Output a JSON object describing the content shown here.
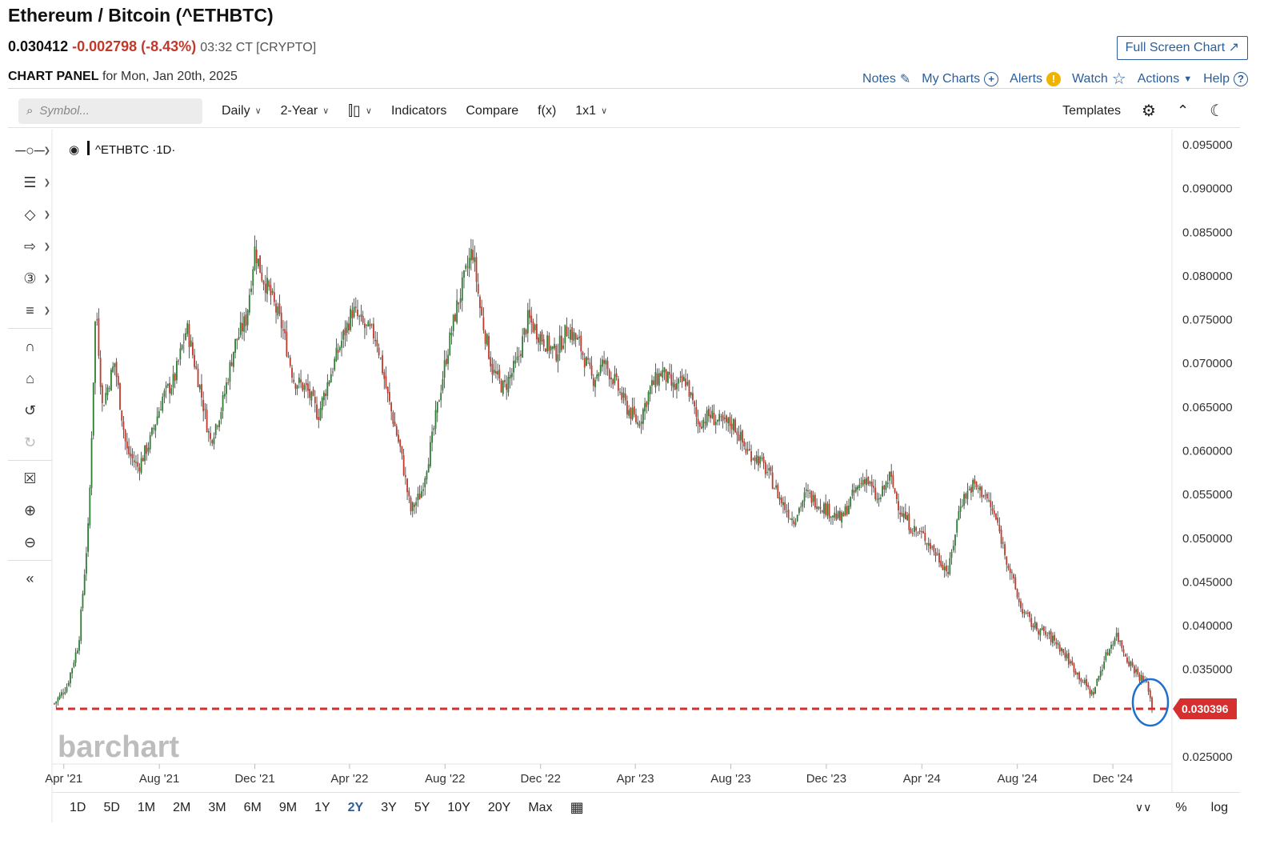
{
  "header": {
    "title": "Ethereum / Bitcoin (^ETHBTC)",
    "last": "0.030412",
    "change": "-0.002798 (-8.43%)",
    "time": "03:32 CT [CRYPTO]",
    "full_screen": "Full Screen Chart",
    "panel_bold": "CHART PANEL",
    "panel_rest": "for Mon, Jan 20th, 2025"
  },
  "top_links": [
    "Notes",
    "My Charts",
    "Alerts",
    "Watch",
    "Actions",
    "Help"
  ],
  "toolbar": {
    "search_placeholder": "Symbol...",
    "interval": "Daily",
    "period": "2-Year",
    "indicators": "Indicators",
    "compare": "Compare",
    "fx": "f(x)",
    "layout": "1x1",
    "templates": "Templates"
  },
  "colors": {
    "accent": "#2b5e9a",
    "down": "#c0392b",
    "up": "#2e7d32",
    "price_line": "#d62f2f",
    "highlight_circle": "#1f6fd1"
  },
  "icons": [
    "search-icon",
    "candles-icon",
    "gear-icon",
    "collapse-icon",
    "moon-icon",
    "calendar-icon",
    "expand-down-icon"
  ],
  "bottom_bar": {
    "ranges": [
      "1D",
      "5D",
      "1M",
      "2M",
      "3M",
      "6M",
      "9M",
      "1Y",
      "2Y",
      "3Y",
      "5Y",
      "10Y",
      "20Y",
      "Max"
    ],
    "active_range": "2Y",
    "percent": "%",
    "log": "log"
  },
  "watermark": "barchart",
  "chart_data": {
    "type": "candlestick",
    "symbol_label": "^ETHBTC ·1D·",
    "x_ticks": [
      "Apr '21",
      "Aug '21",
      "Dec '21",
      "Apr '22",
      "Aug '22",
      "Dec '22",
      "Apr '23",
      "Aug '23",
      "Dec '23",
      "Apr '24",
      "Aug '24",
      "Dec '24"
    ],
    "y_ticks": [
      "0.095000",
      "0.090000",
      "0.085000",
      "0.080000",
      "0.075000",
      "0.070000",
      "0.065000",
      "0.060000",
      "0.055000",
      "0.050000",
      "0.045000",
      "0.040000",
      "0.035000",
      "0.030396",
      "0.025000"
    ],
    "ylim": [
      0.025,
      0.095
    ],
    "current_price": 0.030396,
    "current_price_label": "0.030396",
    "series": [
      {
        "name": "^ETHBTC",
        "x": [
          "2021-03-20",
          "2021-04-05",
          "2021-04-20",
          "2021-05-03",
          "2021-05-12",
          "2021-05-20",
          "2021-06-05",
          "2021-06-20",
          "2021-07-05",
          "2021-07-20",
          "2021-08-05",
          "2021-08-20",
          "2021-09-05",
          "2021-09-20",
          "2021-10-05",
          "2021-10-20",
          "2021-11-05",
          "2021-11-20",
          "2021-12-01",
          "2021-12-10",
          "2021-12-20",
          "2022-01-05",
          "2022-01-20",
          "2022-02-05",
          "2022-02-20",
          "2022-03-05",
          "2022-03-20",
          "2022-04-05",
          "2022-04-20",
          "2022-05-05",
          "2022-05-20",
          "2022-06-05",
          "2022-06-18",
          "2022-07-01",
          "2022-07-15",
          "2022-08-01",
          "2022-08-15",
          "2022-09-05",
          "2022-09-15",
          "2022-10-01",
          "2022-10-15",
          "2022-11-01",
          "2022-11-15",
          "2022-12-01",
          "2022-12-20",
          "2023-01-05",
          "2023-01-20",
          "2023-02-05",
          "2023-02-20",
          "2023-03-05",
          "2023-03-20",
          "2023-04-05",
          "2023-04-20",
          "2023-05-05",
          "2023-05-20",
          "2023-06-05",
          "2023-06-20",
          "2023-07-05",
          "2023-07-20",
          "2023-08-05",
          "2023-08-20",
          "2023-09-05",
          "2023-09-20",
          "2023-10-05",
          "2023-10-20",
          "2023-11-05",
          "2023-11-20",
          "2023-12-05",
          "2023-12-20",
          "2024-01-05",
          "2024-01-20",
          "2024-02-05",
          "2024-02-20",
          "2024-03-05",
          "2024-03-20",
          "2024-04-05",
          "2024-04-20",
          "2024-05-05",
          "2024-05-20",
          "2024-06-05",
          "2024-06-20",
          "2024-07-05",
          "2024-07-20",
          "2024-08-05",
          "2024-08-20",
          "2024-09-05",
          "2024-09-20",
          "2024-10-05",
          "2024-10-20",
          "2024-11-05",
          "2024-11-20",
          "2024-12-05",
          "2024-12-20",
          "2025-01-05",
          "2025-01-15",
          "2025-01-20"
        ],
        "values": [
          0.031,
          0.033,
          0.038,
          0.052,
          0.077,
          0.065,
          0.07,
          0.06,
          0.058,
          0.061,
          0.066,
          0.068,
          0.074,
          0.068,
          0.061,
          0.065,
          0.072,
          0.075,
          0.083,
          0.08,
          0.078,
          0.074,
          0.068,
          0.067,
          0.064,
          0.068,
          0.072,
          0.076,
          0.074,
          0.073,
          0.066,
          0.06,
          0.053,
          0.055,
          0.061,
          0.07,
          0.076,
          0.083,
          0.076,
          0.069,
          0.067,
          0.07,
          0.075,
          0.073,
          0.071,
          0.074,
          0.072,
          0.068,
          0.07,
          0.068,
          0.065,
          0.063,
          0.067,
          0.069,
          0.067,
          0.068,
          0.063,
          0.064,
          0.063,
          0.063,
          0.06,
          0.059,
          0.057,
          0.054,
          0.052,
          0.055,
          0.054,
          0.053,
          0.052,
          0.055,
          0.057,
          0.054,
          0.057,
          0.053,
          0.051,
          0.05,
          0.048,
          0.046,
          0.054,
          0.056,
          0.055,
          0.052,
          0.047,
          0.042,
          0.04,
          0.039,
          0.038,
          0.036,
          0.034,
          0.032,
          0.036,
          0.039,
          0.036,
          0.034,
          0.033,
          0.0304
        ]
      }
    ]
  }
}
